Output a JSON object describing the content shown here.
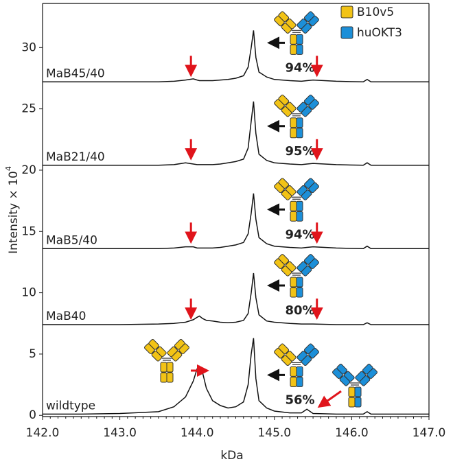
{
  "chart_data": {
    "type": "line",
    "xlabel": "kDa",
    "ylabel": "Intensity × 10",
    "ylabel_sup": "4",
    "xlim": [
      142.0,
      147.0
    ],
    "ylim": [
      -0.1,
      33.6
    ],
    "xticks": [
      {
        "value": 142,
        "label": "142.0"
      },
      {
        "value": 143,
        "label": "143.0"
      },
      {
        "value": 144,
        "label": "144.0"
      },
      {
        "value": 145,
        "label": "145.0"
      },
      {
        "value": 146,
        "label": "146.0"
      },
      {
        "value": 147,
        "label": "147.0"
      }
    ],
    "yticks": [
      0,
      5,
      10,
      15,
      20,
      25,
      30
    ],
    "legend": [
      {
        "name": "B10v5",
        "color": "#f2c316"
      },
      {
        "name": "huOKT3",
        "color": "#1c8fd8"
      }
    ],
    "x": [
      142.0,
      142.5,
      143.0,
      143.5,
      143.7,
      143.85,
      143.95,
      144.0,
      144.03,
      144.07,
      144.12,
      144.2,
      144.3,
      144.4,
      144.5,
      144.6,
      144.66,
      144.7,
      144.73,
      144.76,
      144.8,
      144.9,
      145.0,
      145.2,
      145.35,
      145.42,
      145.5,
      145.8,
      146.15,
      146.2,
      146.25,
      147.0
    ],
    "series": [
      {
        "name": "wildtype",
        "color": "#111111",
        "annotation": "56%",
        "values": [
          0.1,
          0.1,
          0.15,
          0.3,
          0.7,
          1.5,
          2.8,
          3.8,
          4.0,
          3.5,
          2.2,
          1.2,
          0.8,
          0.6,
          0.7,
          1.1,
          2.5,
          5.0,
          6.3,
          3.0,
          1.2,
          0.6,
          0.35,
          0.2,
          0.2,
          0.5,
          0.15,
          0.1,
          0.1,
          0.3,
          0.1,
          0.1
        ]
      },
      {
        "name": "MaB40",
        "color": "#111111",
        "annotation": "80%",
        "values": [
          7.4,
          7.4,
          7.4,
          7.45,
          7.5,
          7.6,
          7.8,
          8.0,
          8.1,
          7.9,
          7.75,
          7.7,
          7.6,
          7.55,
          7.6,
          7.75,
          8.3,
          10.0,
          11.6,
          9.6,
          8.2,
          7.7,
          7.6,
          7.5,
          7.45,
          7.45,
          7.45,
          7.4,
          7.4,
          7.55,
          7.4,
          7.4
        ]
      },
      {
        "name": "MaB5/40",
        "color": "#111111",
        "annotation": "94%",
        "values": [
          13.6,
          13.6,
          13.6,
          13.6,
          13.65,
          13.75,
          13.75,
          13.65,
          13.65,
          13.65,
          13.65,
          13.65,
          13.7,
          13.8,
          13.9,
          14.1,
          14.8,
          16.5,
          18.1,
          16.0,
          14.5,
          14.0,
          13.8,
          13.7,
          13.65,
          13.7,
          13.75,
          13.65,
          13.6,
          13.8,
          13.6,
          13.6
        ]
      },
      {
        "name": "MaB21/40",
        "color": "#111111",
        "annotation": "95%",
        "values": [
          20.4,
          20.4,
          20.4,
          20.4,
          20.45,
          20.6,
          20.5,
          20.45,
          20.45,
          20.45,
          20.45,
          20.45,
          20.5,
          20.6,
          20.7,
          20.9,
          21.8,
          24.0,
          25.6,
          23.0,
          21.3,
          20.8,
          20.6,
          20.5,
          20.45,
          20.5,
          20.55,
          20.45,
          20.4,
          20.6,
          20.4,
          20.4
        ]
      },
      {
        "name": "MaB45/40",
        "color": "#111111",
        "annotation": "94%",
        "values": [
          27.2,
          27.2,
          27.2,
          27.2,
          27.25,
          27.35,
          27.45,
          27.35,
          27.3,
          27.3,
          27.3,
          27.3,
          27.35,
          27.4,
          27.5,
          27.7,
          28.4,
          30.0,
          31.4,
          29.2,
          28.0,
          27.6,
          27.4,
          27.3,
          27.25,
          27.3,
          27.35,
          27.25,
          27.2,
          27.4,
          27.2,
          27.2
        ]
      }
    ]
  }
}
